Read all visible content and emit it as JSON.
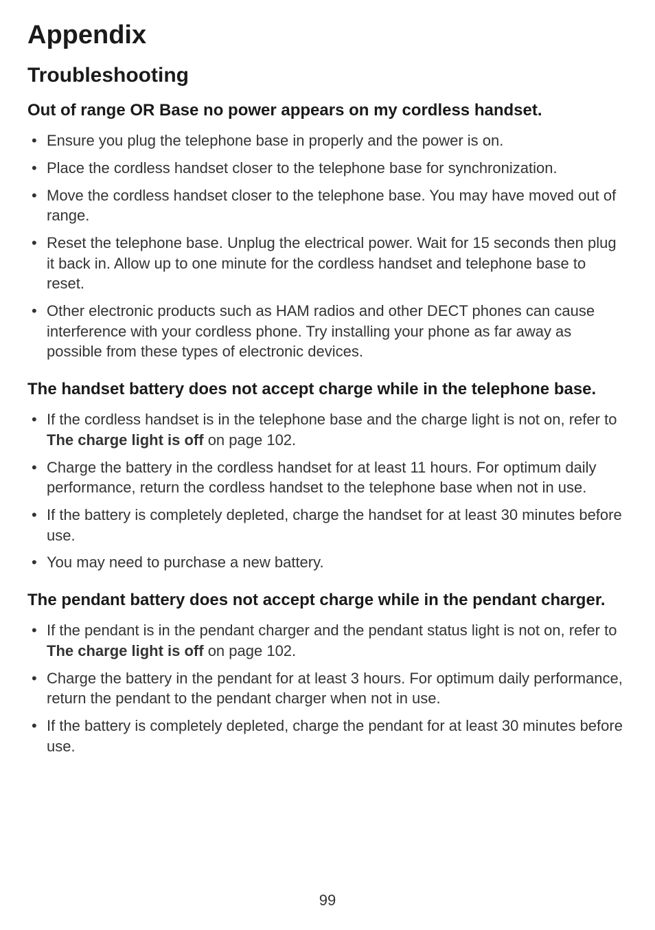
{
  "page": {
    "title": "Appendix",
    "section": "Troubleshooting",
    "page_number": "99",
    "background_color": "#ffffff",
    "text_color": "#333333",
    "heading_color": "#1a1a1a",
    "title_fontsize": 38,
    "section_fontsize": 30,
    "problem_fontsize": 24,
    "body_fontsize": 22
  },
  "problems": [
    {
      "heading": "Out of range OR Base no power appears on my cordless handset.",
      "items": [
        {
          "text": "Ensure you plug the telephone base in properly and the power is on."
        },
        {
          "text": "Place the cordless handset closer to the telephone base for synchronization."
        },
        {
          "text": "Move the cordless handset closer to the telephone base. You may have moved out of range."
        },
        {
          "text": "Reset the telephone base. Unplug the electrical power. Wait for 15 seconds then plug it back in. Allow up to one minute for the cordless handset and telephone base to reset."
        },
        {
          "text": "Other electronic products such as HAM radios and other DECT phones can cause interference with your cordless phone. Try installing your phone as far away as possible from these types of electronic devices."
        }
      ]
    },
    {
      "heading": "The handset battery does not accept charge while in the telephone base.",
      "items": [
        {
          "pre": "If the cordless handset is in the telephone base and the charge light is not on, refer to ",
          "bold": "The charge light is off",
          "post": " on page 102."
        },
        {
          "text": "Charge the battery in the cordless handset for at least 11 hours. For optimum daily performance, return the cordless handset to the telephone base when not in use."
        },
        {
          "text": "If the battery is completely depleted, charge the handset for at least 30 minutes before use."
        },
        {
          "text": "You may need to purchase a new battery."
        }
      ]
    },
    {
      "heading": "The pendant battery does not accept charge while in the pendant charger.",
      "items": [
        {
          "pre": "If the pendant is in the pendant charger and the pendant status light is not on, refer to ",
          "bold": "The charge light is off",
          "post": " on page 102."
        },
        {
          "text": "Charge the battery in the pendant for at least 3 hours. For optimum daily performance, return the pendant to the pendant charger when not in use."
        },
        {
          "text": "If the battery is completely depleted, charge the pendant for at least 30 minutes before use."
        }
      ]
    }
  ]
}
